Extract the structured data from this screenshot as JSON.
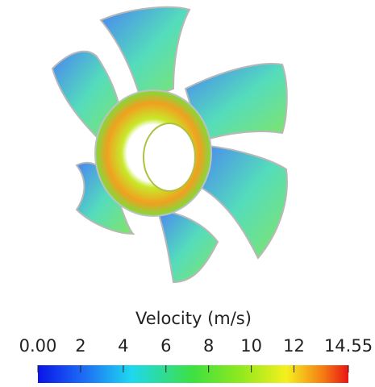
{
  "colorbar": {
    "title": "Velocity (m/s)",
    "range": [
      0,
      14.55
    ],
    "ticks": [
      {
        "value": 0,
        "label": "0.00"
      },
      2,
      4,
      6,
      8,
      10,
      12,
      14.55
    ]
  }
}
